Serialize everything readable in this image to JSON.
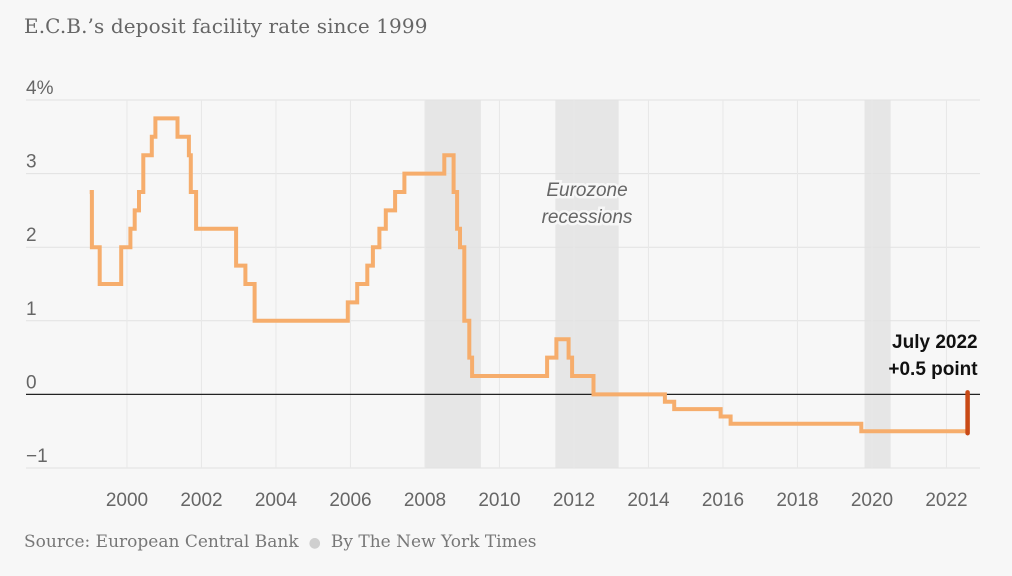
{
  "chart_data": {
    "type": "line",
    "title": "E.C.B.’s deposit facility rate since 1999",
    "y_ticks": [
      {
        "value": 4,
        "label": "4%"
      },
      {
        "value": 3,
        "label": "3"
      },
      {
        "value": 2,
        "label": "2"
      },
      {
        "value": 1,
        "label": "1"
      },
      {
        "value": 0,
        "label": "0"
      },
      {
        "value": -1,
        "label": "−1"
      }
    ],
    "x_ticks": [
      {
        "value": 2000,
        "label": "2000"
      },
      {
        "value": 2002,
        "label": "2002"
      },
      {
        "value": 2004,
        "label": "2004"
      },
      {
        "value": 2006,
        "label": "2006"
      },
      {
        "value": 2008,
        "label": "2008"
      },
      {
        "value": 2010,
        "label": "2010"
      },
      {
        "value": 2012,
        "label": "2012"
      },
      {
        "value": 2014,
        "label": "2014"
      },
      {
        "value": 2016,
        "label": "2016"
      },
      {
        "value": 2018,
        "label": "2018"
      },
      {
        "value": 2020,
        "label": "2020"
      },
      {
        "value": 2022,
        "label": "2022"
      }
    ],
    "xlim": [
      1998.9,
      2022.9
    ],
    "ylim": [
      -1.0,
      4.0
    ],
    "grid": true,
    "recessions": [
      [
        2008.0,
        2009.5
      ],
      [
        2011.5,
        2013.2
      ],
      [
        2019.8,
        2020.5
      ]
    ],
    "recession_label": [
      "Eurozone",
      "recessions"
    ],
    "series": [
      {
        "color": "#f6ad6c",
        "steps": [
          [
            "1999-01-01",
            2.75
          ],
          [
            "1999-01-22",
            2.0
          ],
          [
            "1999-04-09",
            1.5
          ],
          [
            "1999-11-05",
            2.0
          ],
          [
            "2000-02-04",
            2.25
          ],
          [
            "2000-03-17",
            2.5
          ],
          [
            "2000-04-28",
            2.75
          ],
          [
            "2000-06-09",
            3.25
          ],
          [
            "2000-09-01",
            3.5
          ],
          [
            "2000-10-06",
            3.75
          ],
          [
            "2001-05-11",
            3.5
          ],
          [
            "2001-08-31",
            3.25
          ],
          [
            "2001-09-18",
            2.75
          ],
          [
            "2001-11-09",
            2.25
          ],
          [
            "2002-12-06",
            1.75
          ],
          [
            "2003-03-07",
            1.5
          ],
          [
            "2003-06-06",
            1.0
          ],
          [
            "2005-12-06",
            1.25
          ],
          [
            "2006-03-08",
            1.5
          ],
          [
            "2006-06-15",
            1.75
          ],
          [
            "2006-08-09",
            2.0
          ],
          [
            "2006-10-11",
            2.25
          ],
          [
            "2006-12-13",
            2.5
          ],
          [
            "2007-03-14",
            2.75
          ],
          [
            "2007-06-13",
            3.0
          ],
          [
            "2008-07-09",
            3.25
          ],
          [
            "2008-10-08",
            2.75
          ],
          [
            "2008-11-12",
            2.25
          ],
          [
            "2008-12-10",
            2.0
          ],
          [
            "2009-01-21",
            1.0
          ],
          [
            "2009-03-11",
            0.5
          ],
          [
            "2009-04-08",
            0.25
          ],
          [
            "2011-04-13",
            0.5
          ],
          [
            "2011-07-13",
            0.75
          ],
          [
            "2011-11-09",
            0.5
          ],
          [
            "2011-12-14",
            0.25
          ],
          [
            "2012-07-11",
            0.0
          ],
          [
            "2014-06-11",
            -0.1
          ],
          [
            "2014-09-10",
            -0.2
          ],
          [
            "2015-12-09",
            -0.3
          ],
          [
            "2016-03-16",
            -0.4
          ],
          [
            "2019-09-18",
            -0.5
          ],
          [
            "2022-07-27",
            0.0
          ]
        ],
        "end": "2022-07-27"
      }
    ],
    "highlight": {
      "from": -0.5,
      "to": 0.0,
      "x": "2022-07-27",
      "color": "#c94a16"
    },
    "annotation": [
      "July 2022",
      "+0.5 point"
    ]
  },
  "footer": {
    "source": "Source: European Central Bank",
    "byline": "By The New York Times"
  }
}
